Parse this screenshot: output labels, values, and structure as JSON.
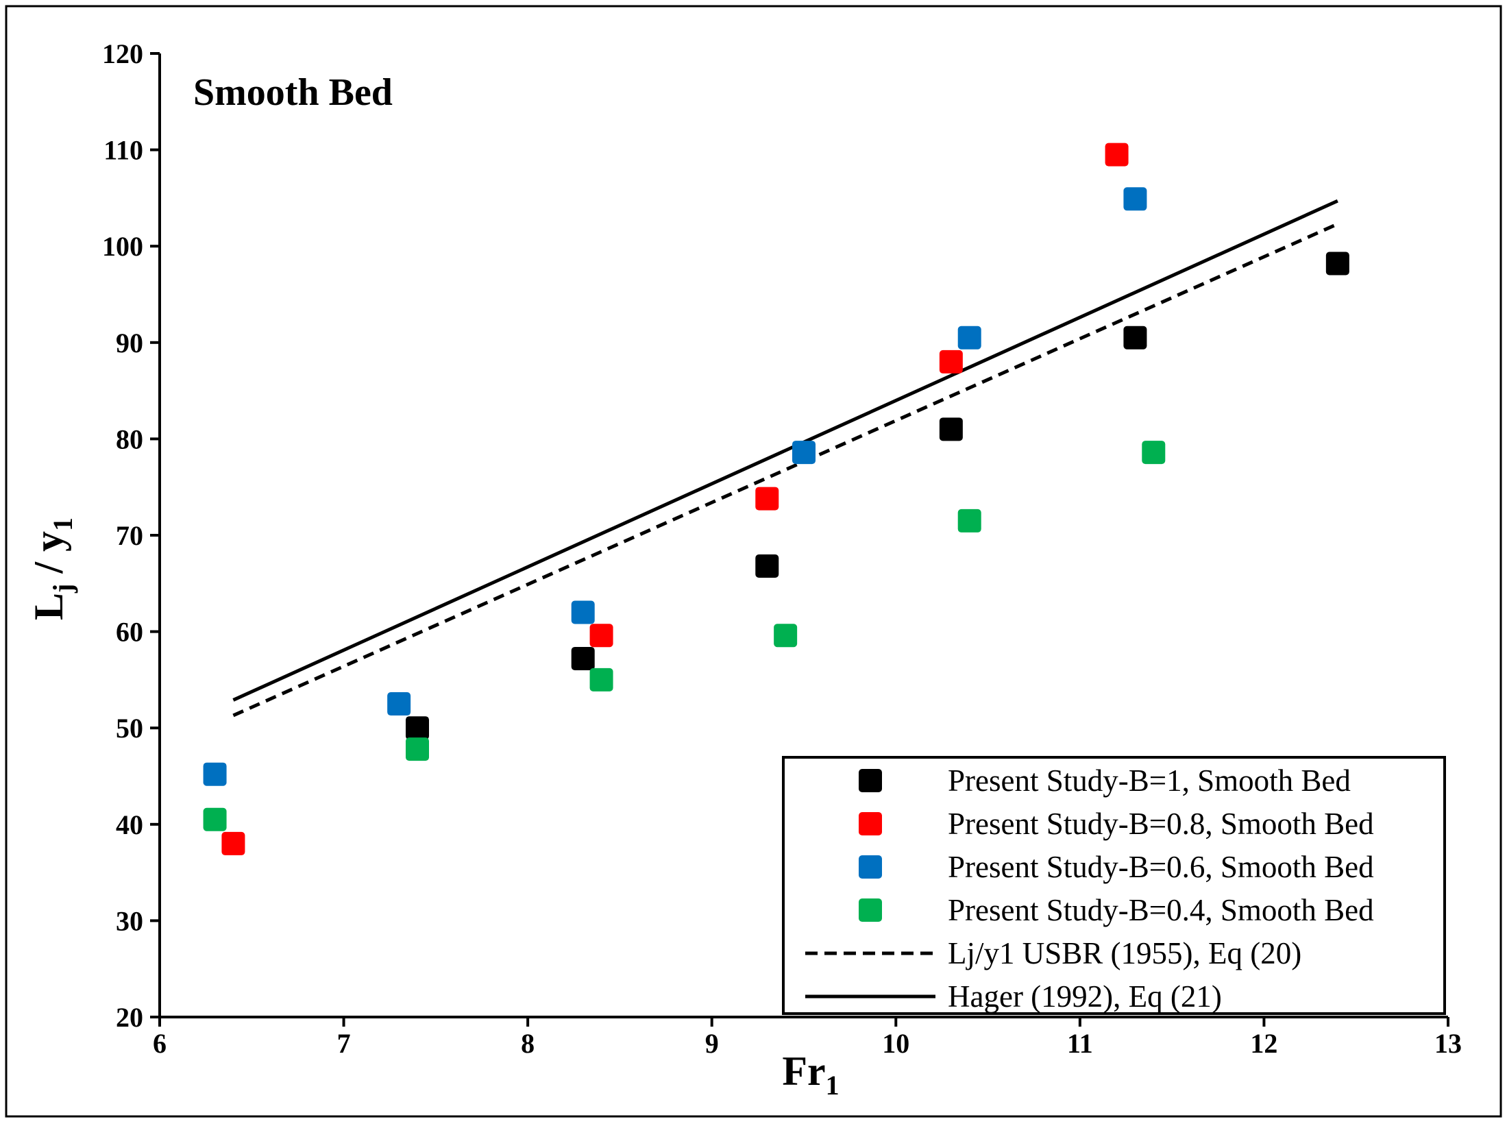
{
  "chart_data": {
    "type": "scatter",
    "title": "Smooth Bed",
    "xlabel": {
      "main": "Fr",
      "sub": "1"
    },
    "ylabel": {
      "main": "L",
      "sub1": "j",
      "mid": " / y",
      "sub2": "1"
    },
    "xlim": [
      6,
      13
    ],
    "ylim": [
      20,
      120
    ],
    "xticks": [
      6,
      7,
      8,
      9,
      10,
      11,
      12,
      13
    ],
    "yticks": [
      20,
      30,
      40,
      50,
      60,
      70,
      80,
      90,
      100,
      110,
      120
    ],
    "grid": false,
    "legend_position": "bottom-right",
    "series": [
      {
        "name": "Present Study-B=1, Smooth Bed",
        "kind": "marker",
        "color": "#000000",
        "points": [
          [
            7.4,
            50
          ],
          [
            8.3,
            57.2
          ],
          [
            9.3,
            66.8
          ],
          [
            10.3,
            81
          ],
          [
            11.3,
            90.5
          ],
          [
            12.4,
            98.2
          ]
        ]
      },
      {
        "name": "Present Study-B=0.8, Smooth Bed",
        "kind": "marker",
        "color": "#ff0000",
        "points": [
          [
            6.4,
            38
          ],
          [
            8.4,
            59.6
          ],
          [
            9.3,
            73.8
          ],
          [
            10.3,
            88
          ],
          [
            11.2,
            109.5
          ]
        ]
      },
      {
        "name": "Present Study-B=0.6, Smooth Bed",
        "kind": "marker",
        "color": "#0070c0",
        "points": [
          [
            6.3,
            45.2
          ],
          [
            7.3,
            52.5
          ],
          [
            8.3,
            62
          ],
          [
            9.5,
            78.6
          ],
          [
            10.4,
            90.5
          ],
          [
            11.3,
            104.9
          ]
        ]
      },
      {
        "name": "Present Study-B=0.4, Smooth Bed",
        "kind": "marker",
        "color": "#00b050",
        "points": [
          [
            6.3,
            40.5
          ],
          [
            7.4,
            47.8
          ],
          [
            8.4,
            55
          ],
          [
            9.4,
            59.6
          ],
          [
            10.4,
            71.5
          ],
          [
            11.4,
            78.6
          ]
        ]
      },
      {
        "name": "Lj/y1 USBR (1955), Eq (20)",
        "kind": "line",
        "style": "dashed",
        "color": "#000000",
        "points": [
          [
            6.4,
            51.3
          ],
          [
            12.4,
            102.3
          ]
        ]
      },
      {
        "name": "Hager (1992), Eq (21)",
        "kind": "line",
        "style": "solid",
        "color": "#000000",
        "points": [
          [
            6.4,
            52.9
          ],
          [
            12.4,
            104.7
          ]
        ]
      }
    ]
  }
}
